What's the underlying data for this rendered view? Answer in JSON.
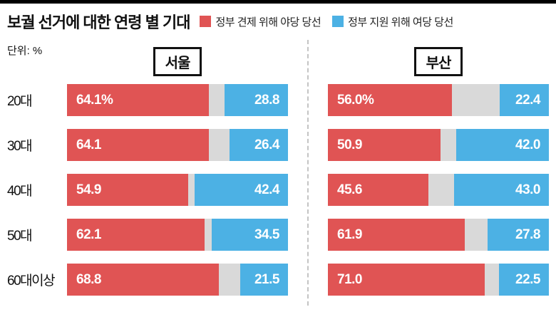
{
  "title": "보궐 선거에 대한 연령 별 기대",
  "unit_label": "단위: %",
  "legend": [
    {
      "label": "정부 견제 위해 야당 당선",
      "color": "#e05454"
    },
    {
      "label": "정부 지원 위해 여당 당선",
      "color": "#4cb1e4"
    }
  ],
  "chart_data": {
    "type": "bar",
    "subtype": "horizontal-stacked",
    "title": "보궐 선거에 대한 연령 별 기대",
    "unit": "%",
    "xlim": [
      0,
      100
    ],
    "categories": [
      "20대",
      "30대",
      "40대",
      "50대",
      "60대이상"
    ],
    "colors": {
      "opposition": "#e05454",
      "ruling": "#4cb1e4",
      "remainder": "#d9d9d9"
    },
    "panels": [
      {
        "name": "서울",
        "series": [
          {
            "name": "정부 견제 위해 야당 당선",
            "values": [
              64.1,
              64.1,
              54.9,
              62.1,
              68.8
            ],
            "display": [
              "64.1%",
              "64.1",
              "54.9",
              "62.1",
              "68.8"
            ]
          },
          {
            "name": "정부 지원 위해 여당 당선",
            "values": [
              28.8,
              26.4,
              42.4,
              34.5,
              21.5
            ],
            "display": [
              "28.8",
              "26.4",
              "42.4",
              "34.5",
              "21.5"
            ]
          }
        ]
      },
      {
        "name": "부산",
        "series": [
          {
            "name": "정부 견제 위해 야당 당선",
            "values": [
              56.0,
              50.9,
              45.6,
              61.9,
              71.0
            ],
            "display": [
              "56.0%",
              "50.9",
              "45.6",
              "61.9",
              "71.0"
            ]
          },
          {
            "name": "정부 지원 위해 여당 당선",
            "values": [
              22.4,
              42.0,
              43.0,
              27.8,
              22.5
            ],
            "display": [
              "22.4",
              "42.0",
              "43.0",
              "27.8",
              "22.5"
            ]
          }
        ]
      }
    ]
  }
}
